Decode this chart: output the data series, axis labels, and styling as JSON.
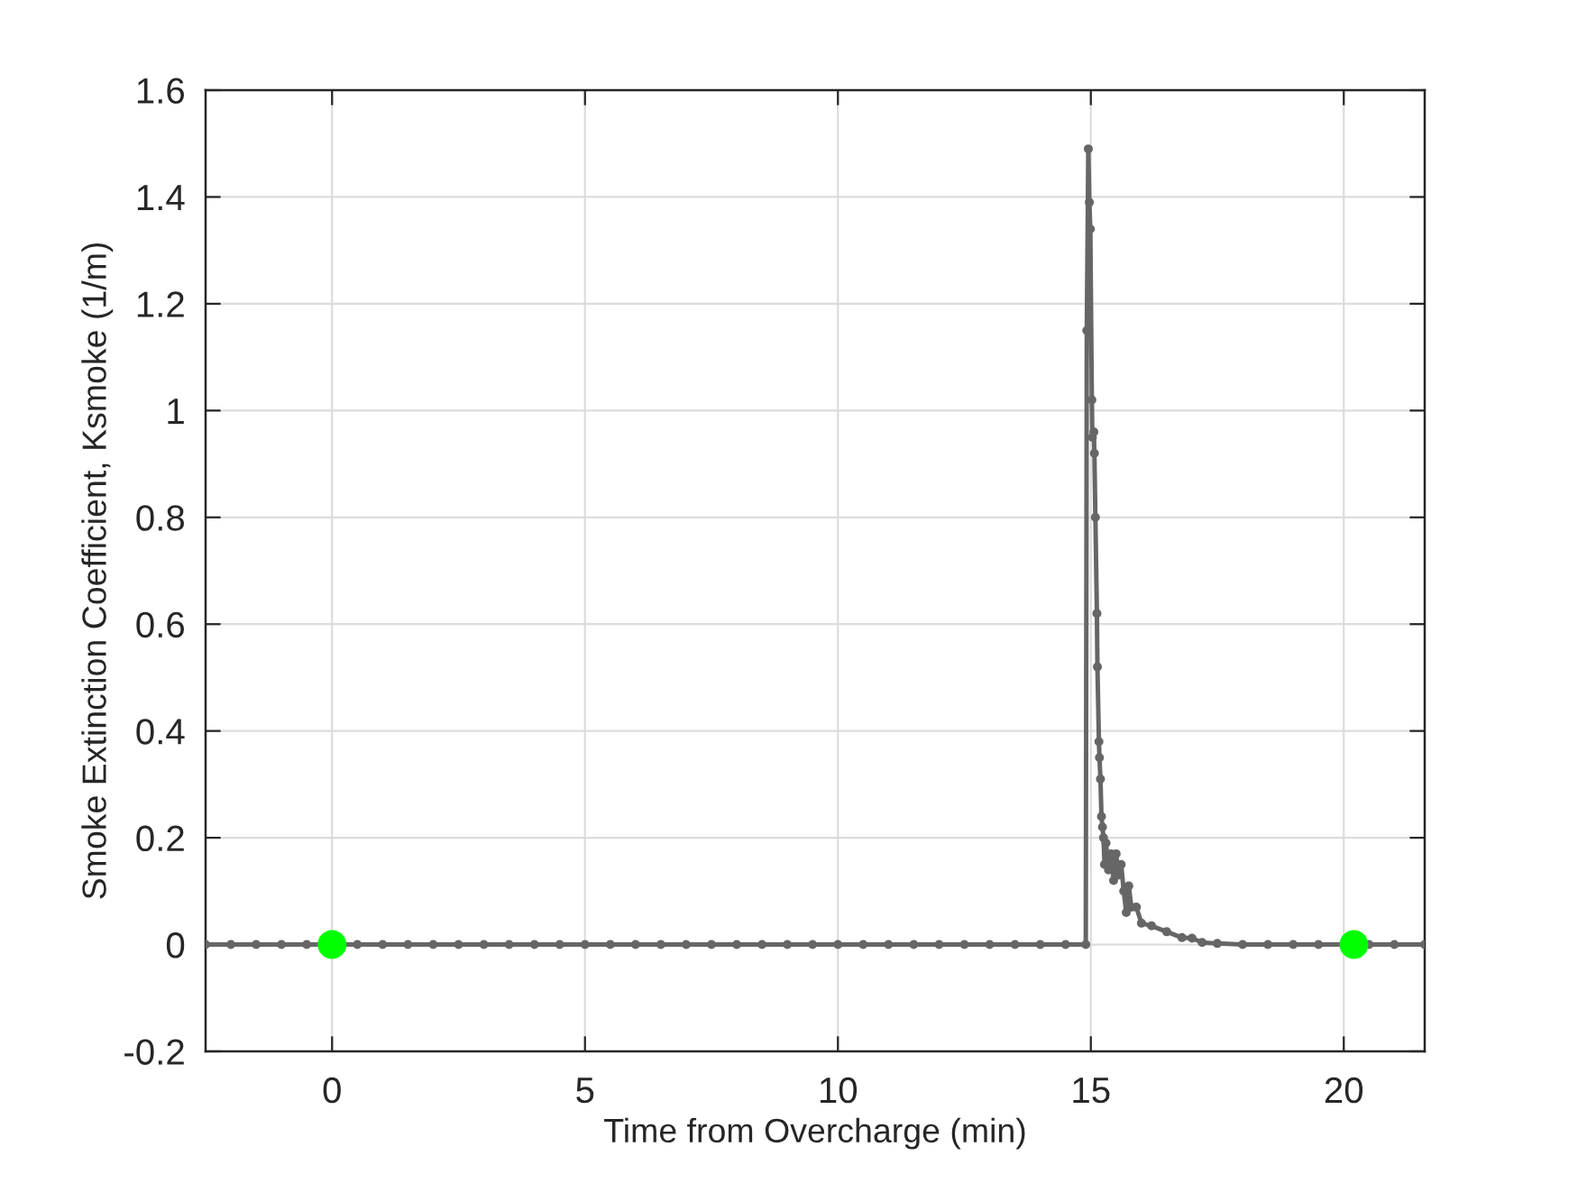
{
  "chart_data": {
    "type": "line",
    "xlabel": "Time from Overcharge (min)",
    "ylabel": "Smoke Extinction Coefficient, Ksmoke (1/m)",
    "xlim": [
      -2.5,
      21.6
    ],
    "ylim": [
      -0.2,
      1.6
    ],
    "xticks": [
      0,
      5,
      10,
      15,
      20
    ],
    "yticks": [
      -0.2,
      0,
      0.2,
      0.4,
      0.6,
      0.8,
      1,
      1.2,
      1.4,
      1.6
    ],
    "grid": true,
    "marker": "circle",
    "line_style": "solid",
    "series": [
      {
        "color": "#666666",
        "x": [
          -2.5,
          -2,
          -1.5,
          -1,
          -0.5,
          0,
          0.5,
          1,
          1.5,
          2,
          2.5,
          3,
          3.5,
          4,
          4.5,
          5,
          5.5,
          6,
          6.5,
          7,
          7.5,
          8,
          8.5,
          9,
          9.5,
          10,
          10.5,
          11,
          11.5,
          12,
          12.5,
          13,
          13.5,
          14,
          14.5,
          14.9,
          14.92,
          14.95,
          14.97,
          14.99,
          15.02,
          15.03,
          15.06,
          15.07,
          15.09,
          15.12,
          15.13,
          15.16,
          15.17,
          15.19,
          15.21,
          15.23,
          15.25,
          15.27,
          15.3,
          15.35,
          15.4,
          15.45,
          15.5,
          15.55,
          15.6,
          15.65,
          15.7,
          15.75,
          15.8,
          15.9,
          16,
          16.2,
          16.5,
          16.8,
          17,
          17.2,
          17.5,
          18,
          18.5,
          19,
          19.5,
          20,
          20.5,
          21,
          21.6
        ],
        "values": [
          0,
          0,
          0,
          0,
          0,
          0,
          0,
          0,
          0,
          0,
          0,
          0,
          0,
          0,
          0,
          0,
          0,
          0,
          0,
          0,
          0,
          0,
          0,
          0,
          0,
          0,
          0,
          0,
          0,
          0,
          0,
          0,
          0,
          0,
          0,
          0,
          1.15,
          1.49,
          1.39,
          1.34,
          1.02,
          0.95,
          0.96,
          0.92,
          0.8,
          0.62,
          0.52,
          0.38,
          0.35,
          0.31,
          0.24,
          0.22,
          0.2,
          0.15,
          0.19,
          0.14,
          0.17,
          0.12,
          0.17,
          0.13,
          0.15,
          0.1,
          0.06,
          0.11,
          0.07,
          0.07,
          0.04,
          0.035,
          0.024,
          0.013,
          0.012,
          0.004,
          0.002,
          0,
          0,
          0,
          0,
          0,
          0,
          0,
          0
        ]
      },
      {
        "type": "scatter",
        "color": "#00ff00",
        "x": [
          0,
          20.2
        ],
        "values": [
          0,
          0
        ]
      }
    ]
  }
}
